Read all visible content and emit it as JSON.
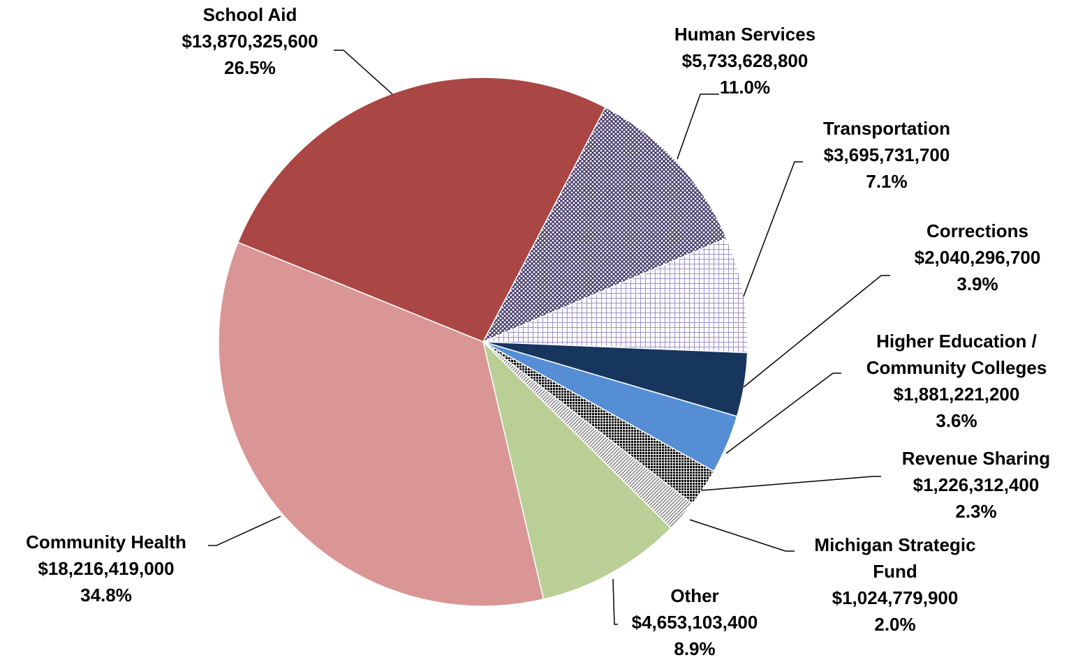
{
  "chart_data": {
    "type": "pie",
    "categories": [
      "Human Services",
      "Transportation",
      "Corrections",
      "Higher Education / Community Colleges",
      "Revenue Sharing",
      "Michigan Strategic Fund",
      "Other",
      "Community Health",
      "School Aid"
    ],
    "values": [
      5733628800,
      3695731700,
      2040296700,
      1881221200,
      1226312400,
      1024779900,
      4653103400,
      18216419000,
      13870325600
    ],
    "value_labels": [
      "$5,733,628,800",
      "$3,695,731,700",
      "$2,040,296,700",
      "$1,881,221,200",
      "$1,226,312,400",
      "$1,024,779,900",
      "$4,653,103,400",
      "$18,216,419,000",
      "$13,870,325,600"
    ],
    "percents": [
      11.0,
      7.1,
      3.9,
      3.6,
      2.3,
      2.0,
      8.9,
      34.8,
      26.5
    ],
    "percent_labels": [
      "11.0%",
      "7.1%",
      "3.9%",
      "3.6%",
      "2.3%",
      "2.0%",
      "8.9%",
      "34.8%",
      "26.5%"
    ],
    "colors": [
      "#3f3566",
      "#9f8fc4",
      "#17365d",
      "#558ed5",
      "#000000",
      "#808080",
      "#b9cf96",
      "#d99694",
      "#aa4644"
    ],
    "patterns": [
      "crosshatch",
      "grid",
      "solid",
      "solid",
      "dots",
      "diagonal",
      "solid",
      "solid",
      "solid"
    ]
  }
}
